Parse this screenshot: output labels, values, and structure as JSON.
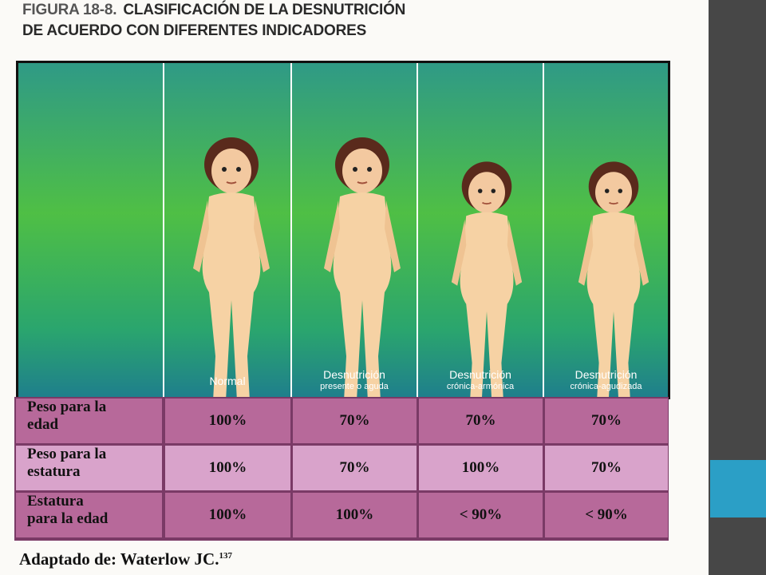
{
  "figure": {
    "number": "FIGURA 18-8.",
    "title": [
      "CLASIFICACIÓN DE LA DESNUTRICIÓN",
      "DE ACUERDO CON DIFERENTES INDICADORES"
    ],
    "panels": [
      {
        "label": "Normal"
      },
      {
        "label": "Desnutrición",
        "sublabel": "presente o aguda"
      },
      {
        "label": "Desnutrición",
        "sublabel": "crónica-armónica"
      },
      {
        "label": "Desnutrición",
        "sublabel": "crónica-agudizada"
      }
    ],
    "table": {
      "rows": [
        {
          "header": [
            "Peso para la",
            "edad"
          ],
          "cells": [
            "100%",
            "70%",
            "70%",
            "70%"
          ]
        },
        {
          "header": [
            "Peso para la",
            "estatura"
          ],
          "cells": [
            "100%",
            "70%",
            "100%",
            "70%"
          ]
        },
        {
          "header": [
            "Estatura",
            "para la edad"
          ],
          "cells": [
            "100%",
            "100%",
            "< 90%",
            "< 90%"
          ]
        }
      ]
    },
    "caption": "Adaptado de: Waterlow JC.",
    "reference": "137"
  }
}
